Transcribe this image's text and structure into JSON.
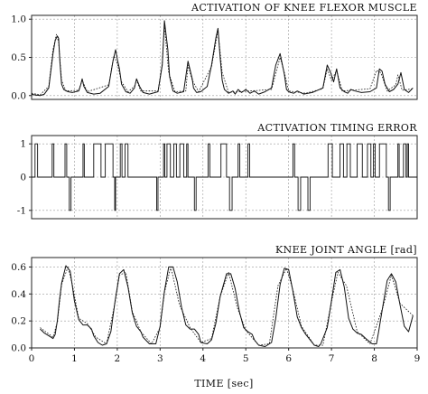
{
  "chart_data": [
    {
      "type": "line",
      "title": "ACTIVATION OF KNEE FLEXOR MUSCLE",
      "xlim": [
        0,
        9
      ],
      "ylim": [
        -0.05,
        1.05
      ],
      "yticks": [
        0.0,
        0.5,
        1.0
      ],
      "ytick_labels": [
        "0.0",
        "0.5",
        "1.0"
      ],
      "grid": true,
      "series": [
        {
          "style": "solid",
          "x": [
            0.0,
            0.05,
            0.2,
            0.3,
            0.4,
            0.5,
            0.55,
            0.6,
            0.63,
            0.66,
            0.7,
            0.75,
            0.85,
            0.95,
            1.1,
            1.15,
            1.18,
            1.22,
            1.3,
            1.45,
            1.6,
            1.8,
            1.9,
            1.96,
            2.0,
            2.05,
            2.1,
            2.2,
            2.3,
            2.4,
            2.45,
            2.52,
            2.6,
            2.75,
            2.95,
            3.05,
            3.1,
            3.18,
            3.22,
            3.3,
            3.4,
            3.55,
            3.65,
            3.75,
            3.78,
            3.85,
            3.95,
            4.1,
            4.2,
            4.3,
            4.35,
            4.4,
            4.45,
            4.5,
            4.6,
            4.7,
            4.75,
            4.82,
            4.9,
            5.0,
            5.1,
            5.2,
            5.3,
            5.45,
            5.6,
            5.7,
            5.8,
            5.9,
            5.95,
            6.0,
            6.05,
            6.12,
            6.2,
            6.35,
            6.55,
            6.8,
            6.9,
            6.98,
            7.05,
            7.12,
            7.2,
            7.3,
            7.38,
            7.45,
            7.55,
            7.7,
            7.9,
            8.05,
            8.12,
            8.18,
            8.25,
            8.35,
            8.45,
            8.55,
            8.62,
            8.7,
            8.8,
            8.9
          ],
          "y": [
            0.02,
            0.01,
            0.0,
            0.02,
            0.1,
            0.55,
            0.72,
            0.78,
            0.75,
            0.45,
            0.15,
            0.08,
            0.05,
            0.04,
            0.06,
            0.15,
            0.22,
            0.12,
            0.04,
            0.02,
            0.03,
            0.12,
            0.45,
            0.6,
            0.48,
            0.35,
            0.15,
            0.05,
            0.03,
            0.1,
            0.22,
            0.12,
            0.04,
            0.02,
            0.05,
            0.4,
            0.98,
            0.6,
            0.25,
            0.06,
            0.03,
            0.05,
            0.45,
            0.22,
            0.1,
            0.04,
            0.05,
            0.12,
            0.4,
            0.75,
            0.88,
            0.5,
            0.2,
            0.08,
            0.03,
            0.06,
            0.02,
            0.08,
            0.04,
            0.08,
            0.03,
            0.06,
            0.02,
            0.05,
            0.1,
            0.4,
            0.55,
            0.28,
            0.08,
            0.05,
            0.04,
            0.03,
            0.06,
            0.02,
            0.04,
            0.1,
            0.4,
            0.3,
            0.18,
            0.35,
            0.1,
            0.05,
            0.03,
            0.08,
            0.06,
            0.04,
            0.05,
            0.1,
            0.35,
            0.32,
            0.15,
            0.05,
            0.08,
            0.15,
            0.3,
            0.08,
            0.04,
            0.1
          ]
        },
        {
          "style": "dotted",
          "x": [
            0.0,
            0.2,
            0.4,
            0.5,
            0.58,
            0.63,
            0.7,
            0.8,
            1.1,
            1.18,
            1.3,
            1.8,
            1.92,
            2.0,
            2.1,
            2.25,
            2.4,
            2.45,
            2.55,
            2.95,
            3.05,
            3.1,
            3.2,
            3.35,
            3.6,
            3.65,
            3.75,
            3.9,
            4.2,
            4.35,
            4.45,
            4.6,
            5.6,
            5.8,
            5.9,
            6.0,
            6.4,
            6.8,
            6.9,
            7.0,
            7.12,
            7.25,
            7.9,
            8.05,
            8.15,
            8.3,
            8.5,
            8.55,
            8.65,
            8.9
          ],
          "y": [
            0.03,
            0.01,
            0.12,
            0.6,
            0.8,
            0.7,
            0.2,
            0.06,
            0.07,
            0.2,
            0.05,
            0.14,
            0.52,
            0.42,
            0.18,
            0.05,
            0.12,
            0.2,
            0.06,
            0.06,
            0.42,
            0.92,
            0.3,
            0.05,
            0.06,
            0.4,
            0.2,
            0.05,
            0.38,
            0.85,
            0.3,
            0.04,
            0.08,
            0.5,
            0.3,
            0.06,
            0.03,
            0.09,
            0.35,
            0.2,
            0.33,
            0.06,
            0.09,
            0.33,
            0.3,
            0.06,
            0.14,
            0.27,
            0.07,
            0.09
          ]
        }
      ]
    },
    {
      "type": "line",
      "title": "ACTIVATION TIMING ERROR",
      "xlim": [
        0,
        9
      ],
      "ylim": [
        -1.25,
        1.25
      ],
      "yticks": [
        -1,
        0,
        1
      ],
      "ytick_labels": [
        "-1",
        "0",
        "1"
      ],
      "grid": true,
      "series": [
        {
          "style": "step",
          "pulses": [
            [
              0.08,
              0.14,
              1
            ],
            [
              0.48,
              0.52,
              1
            ],
            [
              0.78,
              0.82,
              1
            ],
            [
              0.88,
              0.92,
              -1
            ],
            [
              1.2,
              1.23,
              1
            ],
            [
              1.45,
              1.62,
              1
            ],
            [
              1.72,
              1.9,
              1
            ],
            [
              1.94,
              1.96,
              -1
            ],
            [
              2.07,
              2.11,
              1
            ],
            [
              2.18,
              2.25,
              1
            ],
            [
              2.92,
              2.95,
              -1
            ],
            [
              3.08,
              3.11,
              1
            ],
            [
              3.16,
              3.24,
              1
            ],
            [
              3.32,
              3.38,
              1
            ],
            [
              3.46,
              3.55,
              1
            ],
            [
              3.62,
              3.65,
              1
            ],
            [
              3.8,
              3.84,
              -1
            ],
            [
              4.12,
              4.16,
              1
            ],
            [
              4.42,
              4.55,
              1
            ],
            [
              4.62,
              4.68,
              -1
            ],
            [
              4.82,
              4.86,
              1
            ],
            [
              5.05,
              5.09,
              1
            ],
            [
              6.1,
              6.14,
              1
            ],
            [
              6.22,
              6.28,
              -1
            ],
            [
              6.45,
              6.5,
              -1
            ],
            [
              6.92,
              7.02,
              1
            ],
            [
              7.2,
              7.28,
              1
            ],
            [
              7.36,
              7.44,
              1
            ],
            [
              7.6,
              7.72,
              1
            ],
            [
              7.84,
              7.92,
              1
            ],
            [
              7.98,
              8.02,
              1
            ],
            [
              8.12,
              8.28,
              1
            ],
            [
              8.33,
              8.37,
              -1
            ],
            [
              8.55,
              8.58,
              1
            ],
            [
              8.68,
              8.74,
              1
            ],
            [
              8.77,
              8.8,
              1
            ]
          ]
        }
      ]
    },
    {
      "type": "line",
      "title": "KNEE JOINT ANGLE [rad]",
      "xlabel": "TIME [sec]",
      "xlim": [
        0,
        9
      ],
      "xticks": [
        0,
        1,
        2,
        3,
        4,
        5,
        6,
        7,
        8,
        9
      ],
      "xtick_labels": [
        "0",
        "1",
        "2",
        "3",
        "4",
        "5",
        "6",
        "7",
        "8",
        "9"
      ],
      "ylim": [
        0.0,
        0.67
      ],
      "yticks": [
        0.0,
        0.2,
        0.4,
        0.6
      ],
      "ytick_labels": [
        "0.0",
        "0.2",
        "0.4",
        "0.6"
      ],
      "grid": true,
      "series": [
        {
          "style": "solid",
          "x": [
            0.2,
            0.3,
            0.4,
            0.5,
            0.55,
            0.6,
            0.65,
            0.7,
            0.8,
            0.9,
            0.95,
            1.0,
            1.1,
            1.2,
            1.3,
            1.4,
            1.45,
            1.55,
            1.65,
            1.75,
            1.85,
            1.95,
            2.05,
            2.15,
            2.25,
            2.35,
            2.45,
            2.55,
            2.6,
            2.75,
            2.9,
            3.0,
            3.1,
            3.2,
            3.3,
            3.4,
            3.5,
            3.6,
            3.7,
            3.8,
            3.9,
            3.95,
            4.1,
            4.2,
            4.3,
            4.4,
            4.55,
            4.65,
            4.75,
            4.85,
            4.95,
            5.05,
            5.15,
            5.2,
            5.3,
            5.45,
            5.6,
            5.7,
            5.8,
            5.9,
            6.0,
            6.1,
            6.2,
            6.3,
            6.4,
            6.5,
            6.6,
            6.7,
            6.75,
            6.9,
            7.0,
            7.1,
            7.2,
            7.3,
            7.4,
            7.5,
            7.6,
            7.7,
            7.8,
            7.95,
            8.05,
            8.1,
            8.2,
            8.3,
            8.4,
            8.5,
            8.6,
            8.7,
            8.8,
            8.9
          ],
          "y": [
            0.14,
            0.11,
            0.09,
            0.07,
            0.1,
            0.2,
            0.35,
            0.48,
            0.61,
            0.57,
            0.46,
            0.35,
            0.21,
            0.17,
            0.17,
            0.14,
            0.09,
            0.04,
            0.02,
            0.03,
            0.12,
            0.35,
            0.55,
            0.58,
            0.45,
            0.26,
            0.16,
            0.12,
            0.08,
            0.03,
            0.03,
            0.16,
            0.42,
            0.6,
            0.6,
            0.49,
            0.3,
            0.17,
            0.14,
            0.14,
            0.1,
            0.04,
            0.03,
            0.06,
            0.18,
            0.38,
            0.55,
            0.55,
            0.44,
            0.27,
            0.15,
            0.12,
            0.1,
            0.06,
            0.02,
            0.01,
            0.04,
            0.22,
            0.47,
            0.59,
            0.58,
            0.42,
            0.23,
            0.15,
            0.1,
            0.06,
            0.02,
            0.01,
            0.03,
            0.15,
            0.35,
            0.56,
            0.58,
            0.45,
            0.22,
            0.14,
            0.11,
            0.1,
            0.07,
            0.03,
            0.03,
            0.12,
            0.31,
            0.5,
            0.55,
            0.49,
            0.32,
            0.16,
            0.12,
            0.24
          ]
        },
        {
          "style": "dotted",
          "x": [
            0.2,
            0.5,
            0.6,
            0.7,
            0.85,
            0.95,
            1.1,
            1.3,
            1.5,
            1.75,
            1.95,
            2.05,
            2.2,
            2.35,
            2.55,
            2.8,
            3.0,
            3.1,
            3.25,
            3.45,
            3.7,
            3.95,
            4.2,
            4.4,
            4.6,
            4.8,
            5.0,
            5.3,
            5.55,
            5.75,
            5.95,
            6.1,
            6.3,
            6.6,
            6.8,
            7.0,
            7.15,
            7.35,
            7.6,
            7.9,
            8.2,
            8.4,
            8.6,
            8.9
          ],
          "y": [
            0.15,
            0.08,
            0.19,
            0.47,
            0.6,
            0.47,
            0.22,
            0.18,
            0.08,
            0.03,
            0.34,
            0.54,
            0.56,
            0.27,
            0.12,
            0.03,
            0.15,
            0.41,
            0.6,
            0.32,
            0.15,
            0.04,
            0.07,
            0.38,
            0.56,
            0.3,
            0.13,
            0.02,
            0.03,
            0.46,
            0.59,
            0.43,
            0.16,
            0.02,
            0.02,
            0.34,
            0.56,
            0.46,
            0.12,
            0.03,
            0.3,
            0.54,
            0.33,
            0.24
          ]
        }
      ]
    }
  ]
}
